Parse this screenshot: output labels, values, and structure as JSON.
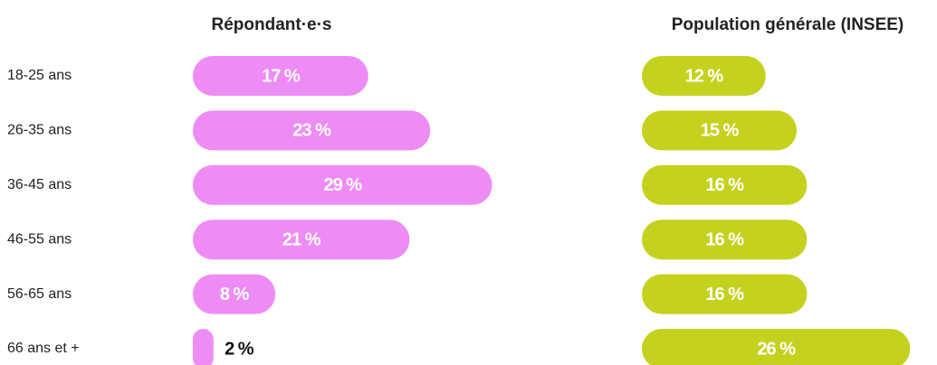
{
  "chart_data": {
    "type": "bar",
    "orientation": "horizontal",
    "categories": [
      "18-25 ans",
      "26-35 ans",
      "36-45 ans",
      "46-55 ans",
      "56-65 ans",
      "66 ans et +"
    ],
    "series": [
      {
        "name": "Répondant·e·s",
        "color": "#ee8cf5",
        "values": [
          17,
          23,
          29,
          21,
          8,
          2
        ],
        "value_labels": [
          "17 %",
          "23 %",
          "29 %",
          "21 %",
          "8 %",
          "2 %"
        ]
      },
      {
        "name": "Population générale (INSEE)",
        "color": "#c4d21f",
        "values": [
          12,
          15,
          16,
          16,
          16,
          26
        ],
        "value_labels": [
          "12 %",
          "15 %",
          "16 %",
          "16 %",
          "16 %",
          "26 %"
        ]
      }
    ]
  }
}
